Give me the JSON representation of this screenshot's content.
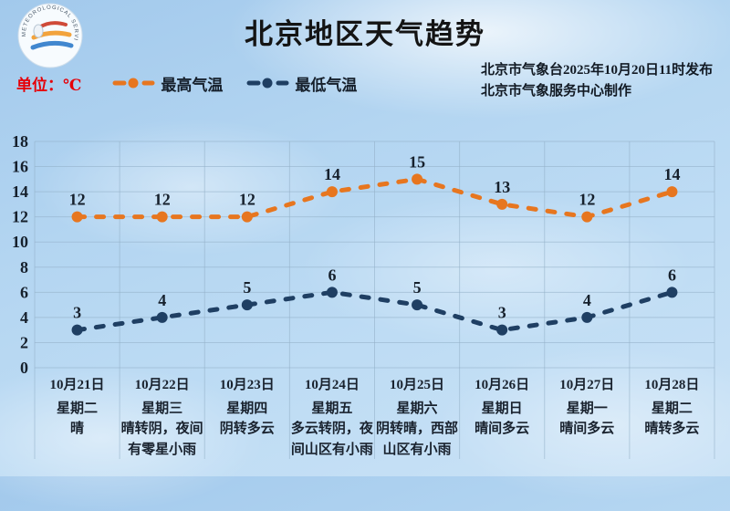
{
  "colors": {
    "unit_text": "#e60008",
    "grid": "#92aec7",
    "title_text": "#141414",
    "high_series": "#e7761f",
    "low_series": "#1f3f63"
  },
  "header": {
    "title": "北京地区天气趋势",
    "logo_ring_text": "METEOROLOGICAL SERVICE"
  },
  "source": {
    "line1": "北京市气象台2025年10月20日11时发布",
    "line2": "北京市气象服务中心制作"
  },
  "legend": {
    "unit_label": "单位：℃"
  },
  "chart_data": {
    "type": "line",
    "title": "北京地区天气趋势",
    "ylabel": "℃",
    "ylim": [
      0,
      18
    ],
    "ytick_step": 2,
    "grid": true,
    "legend_position": "top-left",
    "line_style": "dashed",
    "categories": [
      {
        "date": "10月21日",
        "weekday": "星期二",
        "weather": "晴"
      },
      {
        "date": "10月22日",
        "weekday": "星期三",
        "weather": "晴转阴，夜间有零星小雨"
      },
      {
        "date": "10月23日",
        "weekday": "星期四",
        "weather": "阴转多云"
      },
      {
        "date": "10月24日",
        "weekday": "星期五",
        "weather": "多云转阴，夜间山区有小雨"
      },
      {
        "date": "10月25日",
        "weekday": "星期六",
        "weather": "阴转晴，西部山区有小雨"
      },
      {
        "date": "10月26日",
        "weekday": "星期日",
        "weather": "晴间多云"
      },
      {
        "date": "10月27日",
        "weekday": "星期一",
        "weather": "晴间多云"
      },
      {
        "date": "10月28日",
        "weekday": "星期二",
        "weather": "晴转多云"
      }
    ],
    "series": [
      {
        "key": "high",
        "name": "最高气温",
        "color": "#e7761f",
        "values": [
          12,
          12,
          12,
          14,
          15,
          13,
          12,
          14
        ]
      },
      {
        "key": "low",
        "name": "最低气温",
        "color": "#1f3f63",
        "values": [
          3,
          4,
          5,
          6,
          5,
          3,
          4,
          6
        ]
      }
    ]
  }
}
